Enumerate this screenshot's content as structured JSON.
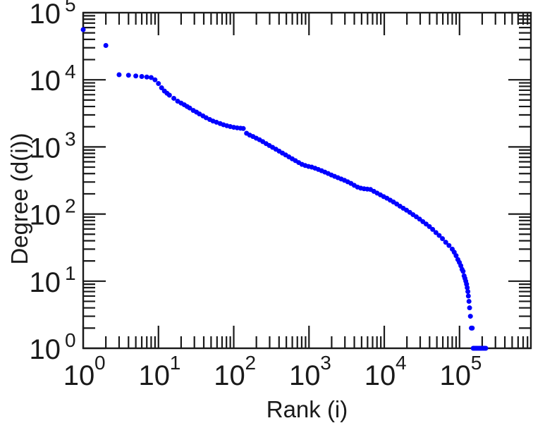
{
  "figure": {
    "background_color": "#ffffff"
  },
  "chart_data": {
    "type": "scatter",
    "title": "",
    "xlabel": "Rank (i)",
    "ylabel": "Degree (d(i))",
    "x_scale": "log",
    "y_scale": "log",
    "x_range_log10": [
      0,
      5.948
    ],
    "y_range_log10": [
      0,
      5
    ],
    "tick_base": "10",
    "x_tick_exponents": [
      0,
      1,
      2,
      3,
      4,
      5
    ],
    "y_tick_exponents": [
      0,
      1,
      2,
      3,
      4,
      5
    ],
    "grid": false,
    "legend": null,
    "axis_color": "#1a1a1a",
    "marker": {
      "shape": "circle",
      "color": "#0000ff",
      "radius_px": 3.5
    },
    "series_name": "degree-vs-rank",
    "points": [
      [
        1,
        56000
      ],
      [
        2,
        32500
      ],
      [
        3,
        11900
      ],
      [
        4,
        11700
      ],
      [
        5,
        11400
      ],
      [
        6,
        11200
      ],
      [
        7,
        11000
      ],
      [
        8,
        10800
      ],
      [
        9,
        10000
      ],
      [
        10,
        8800
      ],
      [
        11,
        7600
      ],
      [
        12,
        6800
      ],
      [
        13,
        6300
      ],
      [
        14,
        5900
      ],
      [
        16,
        5300
      ],
      [
        18,
        4800
      ],
      [
        20,
        4500
      ],
      [
        22,
        4250
      ],
      [
        24,
        4000
      ],
      [
        26,
        3800
      ],
      [
        29,
        3500
      ],
      [
        32,
        3300
      ],
      [
        35,
        3100
      ],
      [
        39,
        2900
      ],
      [
        43,
        2720
      ],
      [
        48,
        2560
      ],
      [
        53,
        2430
      ],
      [
        59,
        2330
      ],
      [
        66,
        2230
      ],
      [
        73,
        2140
      ],
      [
        81,
        2070
      ],
      [
        90,
        2010
      ],
      [
        100,
        1960
      ],
      [
        111,
        1925
      ],
      [
        123,
        1900
      ],
      [
        134,
        1880
      ],
      [
        148,
        1600
      ],
      [
        163,
        1500
      ],
      [
        180,
        1430
      ],
      [
        199,
        1350
      ],
      [
        220,
        1280
      ],
      [
        243,
        1200
      ],
      [
        269,
        1120
      ],
      [
        297,
        1050
      ],
      [
        328,
        985
      ],
      [
        363,
        925
      ],
      [
        401,
        865
      ],
      [
        443,
        810
      ],
      [
        489,
        760
      ],
      [
        541,
        710
      ],
      [
        598,
        665
      ],
      [
        660,
        625
      ],
      [
        730,
        585
      ],
      [
        806,
        550
      ],
      [
        891,
        528
      ],
      [
        985,
        512
      ],
      [
        1088,
        500
      ],
      [
        1203,
        482
      ],
      [
        1329,
        462
      ],
      [
        1469,
        442
      ],
      [
        1623,
        422
      ],
      [
        1794,
        402
      ],
      [
        1982,
        382
      ],
      [
        2190,
        364
      ],
      [
        2421,
        348
      ],
      [
        2675,
        333
      ],
      [
        2956,
        318
      ],
      [
        3267,
        302
      ],
      [
        3610,
        286
      ],
      [
        3990,
        268
      ],
      [
        4409,
        252
      ],
      [
        4873,
        243
      ],
      [
        5385,
        238
      ],
      [
        5951,
        235
      ],
      [
        6577,
        232
      ],
      [
        7268,
        218
      ],
      [
        8032,
        205
      ],
      [
        8877,
        193
      ],
      [
        9810,
        182
      ],
      [
        10841,
        172
      ],
      [
        11980,
        161
      ],
      [
        13240,
        151
      ],
      [
        14632,
        141
      ],
      [
        16170,
        131
      ],
      [
        17870,
        122
      ],
      [
        19749,
        114
      ],
      [
        21825,
        106
      ],
      [
        24120,
        98
      ],
      [
        26656,
        91
      ],
      [
        29458,
        84
      ],
      [
        32555,
        77
      ],
      [
        35977,
        71
      ],
      [
        39760,
        65
      ],
      [
        43940,
        59
      ],
      [
        48559,
        53
      ],
      [
        53664,
        48
      ],
      [
        59306,
        43
      ],
      [
        65540,
        38
      ],
      [
        72430,
        34
      ],
      [
        80045,
        30
      ],
      [
        85000,
        27
      ],
      [
        90000,
        24
      ],
      [
        95000,
        21
      ],
      [
        99500,
        19
      ],
      [
        104000,
        17
      ],
      [
        108000,
        15
      ],
      [
        111500,
        14
      ],
      [
        115000,
        12
      ],
      [
        118000,
        11
      ],
      [
        121000,
        10
      ],
      [
        124000,
        9
      ],
      [
        126500,
        8
      ],
      [
        129000,
        7
      ],
      [
        131000,
        6
      ],
      [
        133500,
        5
      ],
      [
        136000,
        4
      ],
      [
        139500,
        3
      ],
      [
        143500,
        2
      ],
      [
        147500,
        2
      ],
      [
        152000,
        1
      ],
      [
        158000,
        1
      ],
      [
        165000,
        1
      ],
      [
        172000,
        1
      ],
      [
        180000,
        1
      ],
      [
        188000,
        1
      ],
      [
        196000,
        1
      ],
      [
        205000,
        1
      ],
      [
        214000,
        1
      ],
      [
        223000,
        1
      ]
    ]
  }
}
